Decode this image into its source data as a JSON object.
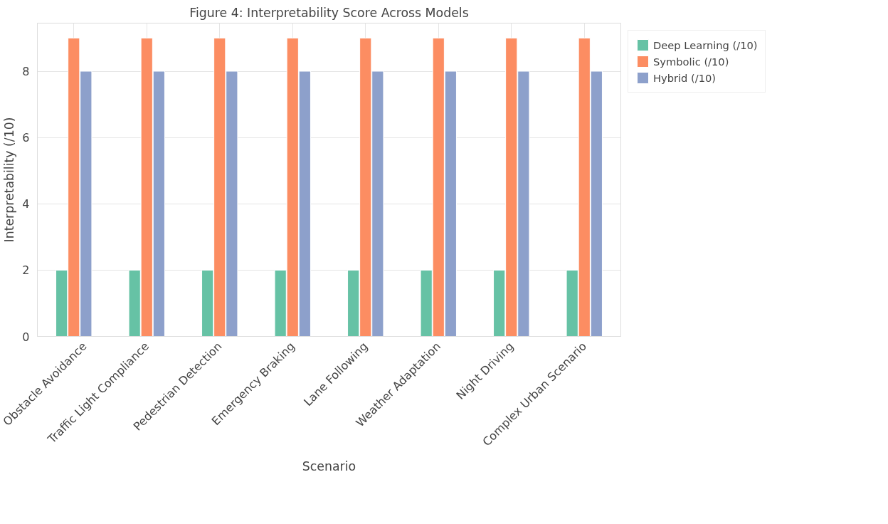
{
  "chart_data": {
    "type": "bar",
    "title": "Figure 4: Interpretability Score Across Models",
    "xlabel": "Scenario",
    "ylabel": "Interpretability (/10)",
    "categories": [
      "Obstacle Avoidance",
      "Traffic Light Compliance",
      "Pedestrian Detection",
      "Emergency Braking",
      "Lane Following",
      "Weather Adaptation",
      "Night Driving",
      "Complex Urban Scenario"
    ],
    "series": [
      {
        "name": "Deep Learning (/10)",
        "color": "#66c2a5",
        "values": [
          2,
          2,
          2,
          2,
          2,
          2,
          2,
          2
        ]
      },
      {
        "name": "Symbolic (/10)",
        "color": "#fc8d62",
        "values": [
          9,
          9,
          9,
          9,
          9,
          9,
          9,
          9
        ]
      },
      {
        "name": "Hybrid (/10)",
        "color": "#8da0cb",
        "values": [
          8,
          8,
          8,
          8,
          8,
          8,
          8,
          8
        ]
      }
    ],
    "ylim": [
      0,
      9.45
    ],
    "yticks": [
      0,
      2,
      4,
      6,
      8
    ],
    "grid": true,
    "legend": "top right"
  }
}
